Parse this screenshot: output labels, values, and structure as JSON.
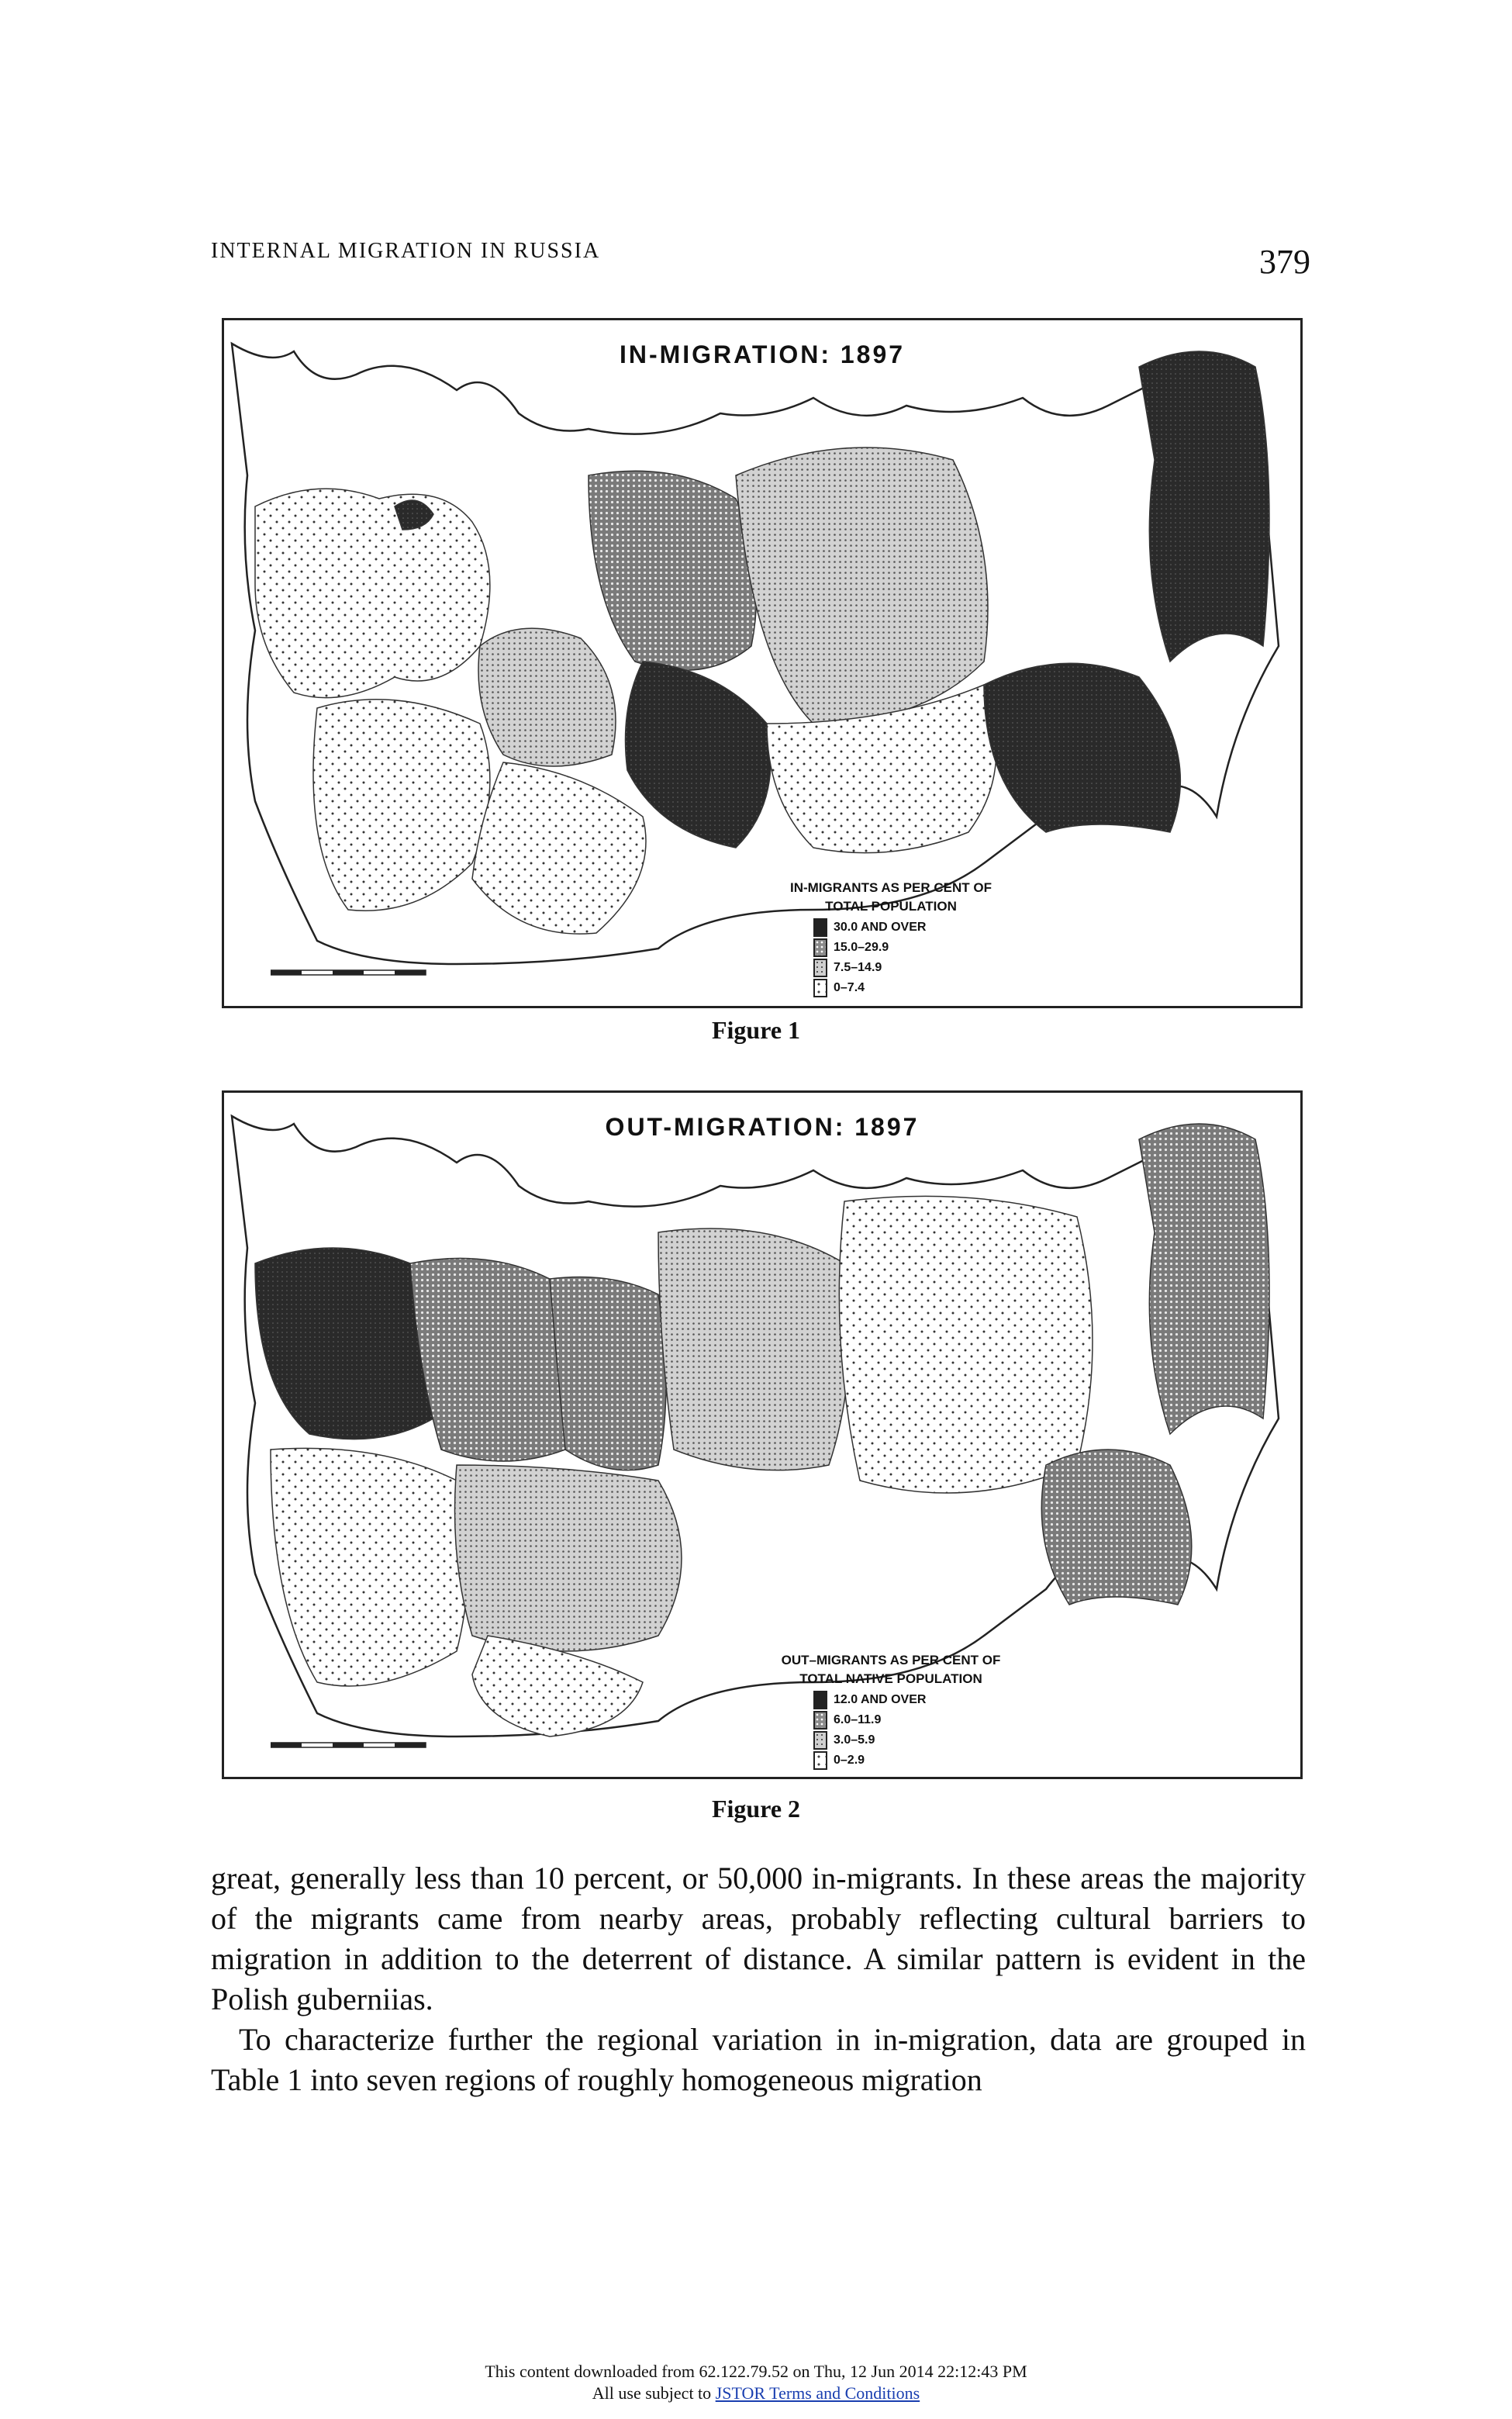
{
  "header": {
    "running_head": "INTERNAL MIGRATION IN RUSSIA",
    "page_number": "379"
  },
  "figures": [
    {
      "map_title": "IN-MIGRATION: 1897",
      "legend": {
        "caption_line1": "IN-MIGRANTS AS PER CENT OF",
        "caption_line2": "TOTAL POPULATION",
        "items": [
          "30.0 AND OVER",
          "15.0–29.9",
          "7.5–14.9",
          "0–7.4"
        ]
      },
      "caption": "Figure 1"
    },
    {
      "map_title": "OUT-MIGRATION: 1897",
      "legend": {
        "caption_line1": "OUT–MIGRANTS AS PER CENT OF",
        "caption_line2": "TOTAL NATIVE POPULATION",
        "items": [
          "12.0 AND OVER",
          "6.0–11.9",
          "3.0–5.9",
          "0–2.9"
        ]
      },
      "caption": "Figure 2"
    }
  ],
  "body": {
    "paragraph1": "great, generally less than 10 percent, or 50,000 in-migrants. In these areas the majority of the migrants came from nearby areas, probably reflecting cultural barriers to migration in addition to the deterrent of distance. A similar pattern is evident in the Polish guberniias.",
    "paragraph2": "To characterize further the regional variation in in-migration, data are grouped in Table 1 into seven regions of roughly homogeneous migration"
  },
  "footer": {
    "line1": "This content downloaded from 62.122.79.52 on Thu, 12 Jun 2014 22:12:43 PM",
    "line2_prefix": "All use subject to ",
    "line2_link": "JSTOR Terms and Conditions"
  }
}
